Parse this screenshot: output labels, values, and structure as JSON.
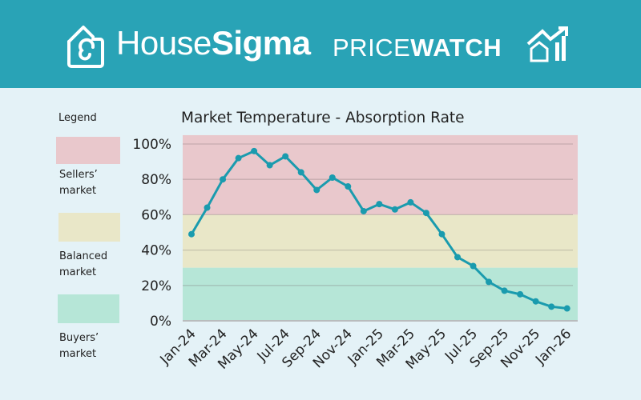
{
  "header": {
    "brand_light": "House",
    "brand_bold": "Sigma",
    "product_light": "PRICE",
    "product_bold": "WATCH",
    "logo_icon": "house-spiral-icon",
    "product_icon": "house-chart-arrow-icon",
    "background": "#29a3b6"
  },
  "legend": {
    "title": "Legend",
    "items": [
      {
        "line1": "Sellers’",
        "line2": "market",
        "color": "#e9c8cc"
      },
      {
        "line1": "Balanced",
        "line2": "market",
        "color": "#e9e7c8"
      },
      {
        "line1": "Buyers’",
        "line2": "market",
        "color": "#b6e6d7"
      }
    ]
  },
  "chart_data": {
    "type": "line",
    "title": "Market Temperature - Absorption Rate",
    "xlabel": "",
    "ylabel": "",
    "ylim": [
      0,
      100
    ],
    "yticks": [
      "0%",
      "20%",
      "40%",
      "60%",
      "80%",
      "100%"
    ],
    "ytick_values": [
      0,
      20,
      40,
      60,
      80,
      100
    ],
    "x": [
      "Jan-24",
      "Feb-24",
      "Mar-24",
      "Apr-24",
      "May-24",
      "Jun-24",
      "Jul-24",
      "Aug-24",
      "Sep-24",
      "Oct-24",
      "Nov-24",
      "Dec-24",
      "Jan-25",
      "Feb-25",
      "Mar-25",
      "Apr-25",
      "May-25",
      "Jun-25",
      "Jul-25",
      "Aug-25",
      "Sep-25",
      "Oct-25",
      "Nov-25",
      "Dec-25",
      "Jan-26"
    ],
    "xticks": [
      "Jan-24",
      "Mar-24",
      "May-24",
      "Jul-24",
      "Sep-24",
      "Nov-24",
      "Jan-25",
      "Mar-25",
      "May-25",
      "Jul-25",
      "Sep-25",
      "Nov-25",
      "Jan-26"
    ],
    "values": [
      49,
      64,
      80,
      92,
      96,
      88,
      93,
      84,
      74,
      81,
      76,
      62,
      66,
      63,
      67,
      61,
      49,
      36,
      31,
      22,
      17,
      15,
      11,
      8,
      7
    ],
    "bands": [
      {
        "from": 60,
        "to": 105,
        "color": "#e9c8cc"
      },
      {
        "from": 30,
        "to": 60,
        "color": "#e9e7c8"
      },
      {
        "from": 0,
        "to": 30,
        "color": "#b6e6d7"
      }
    ],
    "line_color": "#1a9bae",
    "grid": true,
    "legend_position": "left"
  }
}
